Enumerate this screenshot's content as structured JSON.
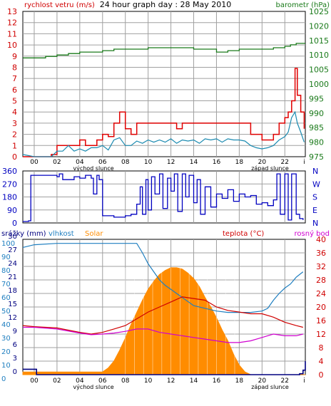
{
  "colors": {
    "wind": "#d00000",
    "gust": "#e00000",
    "wind_avg": "#1a8ab0",
    "pressure": "#1a7a1a",
    "direction": "#0000c0",
    "rain": "#000080",
    "humidity": "#1f7fc0",
    "solar": "#ff8c00",
    "temp": "#d00000",
    "dew": "#d000d0",
    "grid": "#a0a0a0",
    "frame": "#000000"
  },
  "chart_data": [
    {
      "type": "line",
      "title": "24 hour graph day : 28 May 2010",
      "ylabel_left": "rychlost vetru (m/s)",
      "ylabel_right": "barometr (hPa)",
      "ylim_left": [
        0,
        13
      ],
      "ylim_right": [
        975,
        1025
      ],
      "y_ticks_left": [
        "0",
        "1",
        "2",
        "3",
        "4",
        "5",
        "6",
        "7",
        "8",
        "9",
        "10",
        "11",
        "12",
        "13"
      ],
      "y_ticks_right": [
        "975",
        "980",
        "985",
        "990",
        "995",
        "1000",
        "1005",
        "1010",
        "1015",
        "1020",
        "1025"
      ],
      "x_ticks": [
        "00",
        "02",
        "04",
        "06",
        "08",
        "10",
        "12",
        "14",
        "16",
        "18",
        "20",
        "22",
        "i"
      ],
      "x_annotations": [
        "východ slunce",
        "západ slunce"
      ],
      "xlim": [
        -1,
        23.8
      ],
      "series": [
        {
          "name": "gust",
          "x": [
            -1,
            0,
            0.5,
            1,
            1.5,
            2,
            2.5,
            3,
            3.5,
            4,
            4.5,
            5,
            5.5,
            6,
            6.5,
            7,
            7.5,
            8,
            8.5,
            9,
            9.5,
            10,
            10.5,
            11,
            11.5,
            12,
            12.5,
            13,
            13.5,
            14,
            14.5,
            15,
            15.5,
            16,
            16.5,
            17,
            17.5,
            18,
            18.5,
            19,
            19.5,
            20,
            20.5,
            21,
            21.5,
            22,
            22.3,
            22.6,
            22.9,
            23.1,
            23.4,
            23.7
          ],
          "values": [
            0,
            0,
            0,
            0,
            0.2,
            1,
            1,
            1,
            1,
            1.5,
            1,
            1,
            1.5,
            2,
            1.8,
            3,
            4,
            2.5,
            2,
            3,
            3,
            3,
            3,
            3,
            3,
            3,
            2.5,
            3,
            3,
            3,
            3,
            3,
            3,
            3,
            3,
            3,
            3,
            3,
            3,
            2,
            2,
            1.5,
            1.5,
            2,
            3,
            3.5,
            4,
            5,
            7.9,
            5.5,
            4,
            2.5
          ]
        },
        {
          "name": "wind average",
          "x": [
            -1,
            0,
            0.5,
            1,
            1.5,
            2,
            2.5,
            3,
            3.5,
            4,
            4.5,
            5,
            5.5,
            6,
            6.5,
            7,
            7.5,
            8,
            8.5,
            9,
            9.5,
            10,
            10.5,
            11,
            11.5,
            12,
            12.5,
            13,
            13.5,
            14,
            14.5,
            15,
            15.5,
            16,
            16.5,
            17,
            17.5,
            18,
            18.5,
            19,
            19.5,
            20,
            20.5,
            21,
            21.5,
            22,
            22.3,
            22.6,
            22.9,
            23.1,
            23.4,
            23.7
          ],
          "values": [
            0.2,
            0,
            0,
            0,
            0,
            0.5,
            0.5,
            1,
            0.5,
            0.7,
            0.5,
            0.8,
            0.8,
            1,
            0.6,
            1.5,
            1.7,
            1,
            1,
            1.4,
            1.2,
            1.5,
            1.3,
            1.5,
            1.3,
            1.6,
            1.2,
            1.5,
            1.4,
            1.5,
            1.2,
            1.6,
            1.5,
            1.6,
            1.3,
            1.6,
            1.5,
            1.5,
            1.4,
            1,
            0.8,
            0.7,
            0.8,
            1,
            1.5,
            1.8,
            2.2,
            3.5,
            4,
            3,
            2.2,
            1.3
          ]
        },
        {
          "name": "pressure",
          "x": [
            -1,
            0,
            1,
            2,
            3,
            4,
            5,
            6,
            7,
            8,
            9,
            10,
            11,
            12,
            13,
            14,
            15,
            16,
            17,
            18,
            19,
            20,
            21,
            22,
            22.5,
            23,
            23.5,
            23.8
          ],
          "values": [
            1009,
            1009,
            1009.5,
            1010,
            1010.5,
            1011,
            1011,
            1011.5,
            1012,
            1012,
            1012,
            1012.5,
            1012.5,
            1012.5,
            1012.5,
            1012,
            1012,
            1011,
            1011.5,
            1012,
            1012,
            1012,
            1012.5,
            1013,
            1013.5,
            1014,
            1014,
            1014
          ]
        }
      ]
    },
    {
      "type": "line",
      "ylim": [
        0,
        360
      ],
      "y_ticks_left": [
        "0",
        "90",
        "180",
        "270",
        "360"
      ],
      "y_ticks_right": [
        "N",
        "E",
        "S",
        "W",
        "N"
      ],
      "series": [
        {
          "name": "direction",
          "x": [
            -1,
            -0.5,
            -0.3,
            0,
            1,
            2,
            2.2,
            2.5,
            3,
            3.5,
            4,
            4.5,
            5,
            5.2,
            5.5,
            5.7,
            6,
            7,
            8,
            8.5,
            9,
            9.3,
            9.5,
            9.8,
            10,
            10.3,
            10.6,
            11,
            11.3,
            11.7,
            12,
            12.3,
            12.6,
            13,
            13.3,
            13.6,
            14,
            14.3,
            14.6,
            15,
            15.5,
            16,
            16.5,
            17,
            17.5,
            18,
            18.5,
            19,
            19.5,
            20,
            20.5,
            21,
            21.3,
            21.6,
            22,
            22.3,
            22.6,
            23,
            23.3,
            23.6
          ],
          "values": [
            10,
            15,
            330,
            330,
            330,
            320,
            340,
            300,
            300,
            320,
            310,
            330,
            310,
            200,
            330,
            300,
            50,
            40,
            50,
            60,
            130,
            250,
            60,
            300,
            90,
            320,
            200,
            340,
            100,
            310,
            220,
            340,
            80,
            340,
            180,
            330,
            140,
            300,
            60,
            250,
            110,
            200,
            170,
            230,
            150,
            200,
            180,
            190,
            130,
            140,
            120,
            160,
            340,
            60,
            340,
            20,
            340,
            60,
            30,
            20
          ]
        }
      ]
    },
    {
      "type": "line",
      "ylabel_left_1": "srážky (mm)",
      "ylabel_left_2": "vlhkost",
      "ylabel_left_3": "Solar",
      "ylabel_right_1": "teplota (°C)",
      "ylabel_right_2": "rosný bod",
      "ylim_rain": [
        0,
        30
      ],
      "ylim_humidity": [
        0,
        100
      ],
      "ylim_temp": [
        0,
        40
      ],
      "y_ticks_rain": [
        "0",
        "3",
        "6",
        "9",
        "12",
        "15",
        "18",
        "21",
        "24",
        "27",
        "30"
      ],
      "y_ticks_humidity": [
        "0",
        "10",
        "20",
        "30",
        "40",
        "50",
        "60",
        "70",
        "80",
        "90",
        "100"
      ],
      "y_ticks_temp": [
        "0",
        "4",
        "8",
        "12",
        "16",
        "20",
        "24",
        "28",
        "32",
        "36",
        "40"
      ],
      "x_ticks": [
        "00",
        "02",
        "04",
        "06",
        "08",
        "10",
        "12",
        "14",
        "16",
        "18",
        "20",
        "22",
        "i"
      ],
      "x_annotations": [
        "východ slunce",
        "západ slunce"
      ],
      "series": [
        {
          "name": "rain",
          "x": [
            -1,
            0,
            0.2,
            6.5,
            6.5,
            23,
            23.3,
            23.6,
            23.8
          ],
          "values": [
            1.2,
            1.2,
            0,
            0,
            0,
            0,
            0.2,
            1,
            3
          ]
        },
        {
          "name": "humidity",
          "x": [
            -1,
            0,
            2,
            4,
            6,
            8,
            9,
            9.5,
            10,
            10.5,
            11,
            11.5,
            12,
            12.5,
            13,
            14,
            15,
            16,
            17,
            18,
            19,
            20,
            20.5,
            21,
            21.5,
            22,
            22.5,
            23,
            23.3,
            23.6
          ],
          "values": [
            94,
            96,
            97,
            97,
            97,
            97,
            97,
            90,
            82,
            76,
            70,
            66,
            63,
            60,
            57,
            51,
            49,
            47,
            46,
            46,
            46,
            47,
            49,
            55,
            60,
            64,
            67,
            72,
            74,
            76
          ]
        },
        {
          "name": "solar",
          "x": [
            -1,
            6,
            6.5,
            7,
            7.5,
            8,
            8.5,
            9,
            9.5,
            10,
            10.5,
            11,
            11.5,
            12,
            12.5,
            13,
            13.5,
            14,
            14.5,
            15,
            15.5,
            16,
            16.5,
            17,
            17.5,
            18,
            18.5,
            19,
            23.8
          ],
          "values": [
            2,
            2,
            5,
            10,
            18,
            27,
            37,
            46,
            55,
            63,
            69,
            74,
            77,
            79,
            79,
            78,
            75,
            71,
            65,
            57,
            50,
            42,
            33,
            25,
            15,
            7,
            2,
            0,
            0
          ]
        },
        {
          "name": "temperature",
          "x": [
            -1,
            0,
            2,
            4,
            5,
            6,
            7,
            8,
            9,
            10,
            11,
            12,
            13,
            14,
            15,
            16,
            17,
            18,
            19,
            20,
            21,
            22,
            23,
            23.6
          ],
          "values": [
            14.5,
            14.2,
            13.8,
            12.5,
            12,
            12.5,
            13.5,
            14.5,
            16.5,
            18.5,
            20,
            21.5,
            23,
            22.5,
            22,
            20,
            19,
            18.5,
            18,
            18,
            17,
            15.5,
            14.5,
            14
          ]
        },
        {
          "name": "dew point",
          "x": [
            -1,
            0,
            2,
            4,
            5,
            6,
            7,
            8,
            9,
            10,
            11,
            12,
            13,
            14,
            15,
            16,
            17,
            18,
            19,
            20,
            21,
            22,
            23,
            23.6
          ],
          "values": [
            14,
            14,
            13.5,
            12.3,
            11.8,
            12,
            12.3,
            12.8,
            13.5,
            13.5,
            12.5,
            12,
            11.5,
            11,
            10.5,
            10,
            9.5,
            9.5,
            10,
            11,
            12,
            11.5,
            11.5,
            12
          ]
        }
      ]
    }
  ]
}
